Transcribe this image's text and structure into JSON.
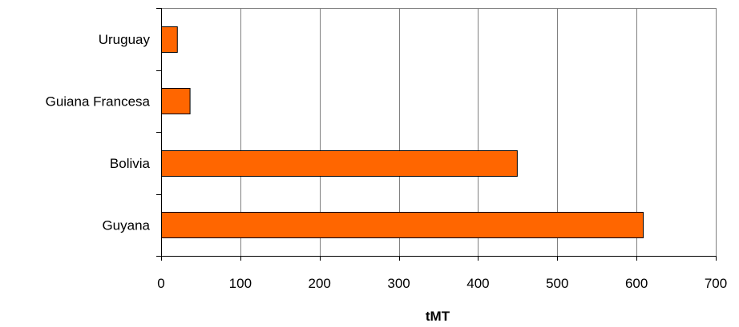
{
  "chart_data": {
    "type": "bar",
    "orientation": "horizontal",
    "categories": [
      "Uruguay",
      "Guiana Francesa",
      "Bolivia",
      "Guyana"
    ],
    "values": [
      20,
      36,
      449,
      608
    ],
    "xlabel": "tMT",
    "ylabel": "",
    "title": "",
    "xlim": [
      0,
      700
    ],
    "xticks": [
      0,
      100,
      200,
      300,
      400,
      500,
      600,
      700
    ],
    "grid": "vertical",
    "legend": "none",
    "bar_color": "#FF6600",
    "bar_outline_color": "#000000",
    "grid_color": "#808080"
  }
}
